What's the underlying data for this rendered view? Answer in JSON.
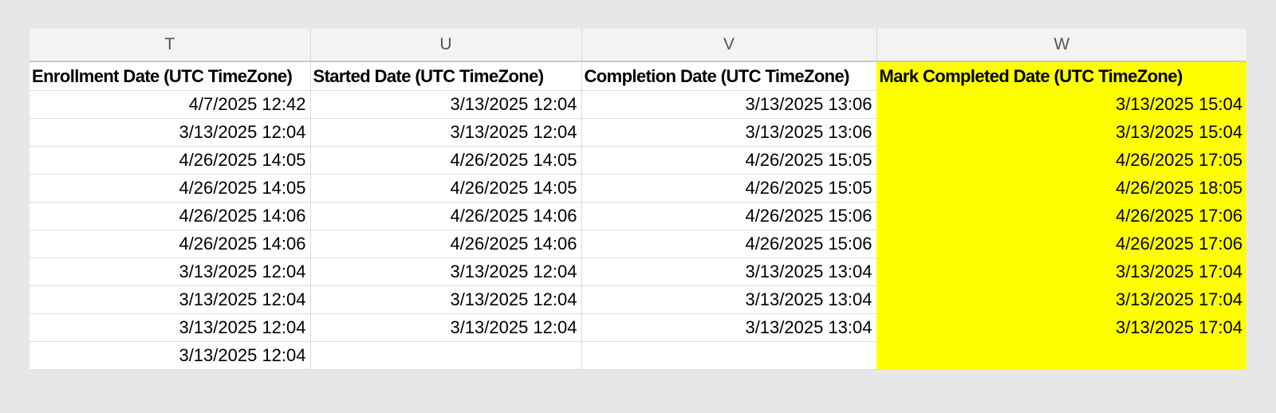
{
  "columns": [
    "T",
    "U",
    "V",
    "W"
  ],
  "headers": [
    "Enrollment Date (UTC TimeZone)",
    "Started Date (UTC TimeZone)",
    "Completion Date (UTC TimeZone)",
    "Mark Completed Date (UTC TimeZone)"
  ],
  "highlight_color": "#ffff00",
  "rows": [
    [
      "4/7/2025 12:42",
      "3/13/2025 12:04",
      "3/13/2025 13:06",
      "3/13/2025 15:04"
    ],
    [
      "3/13/2025 12:04",
      "3/13/2025 12:04",
      "3/13/2025 13:06",
      "3/13/2025 15:04"
    ],
    [
      "4/26/2025 14:05",
      "4/26/2025 14:05",
      "4/26/2025 15:05",
      "4/26/2025 17:05"
    ],
    [
      "4/26/2025 14:05",
      "4/26/2025 14:05",
      "4/26/2025 15:05",
      "4/26/2025 18:05"
    ],
    [
      "4/26/2025 14:06",
      "4/26/2025 14:06",
      "4/26/2025 15:06",
      "4/26/2025 17:06"
    ],
    [
      "4/26/2025 14:06",
      "4/26/2025 14:06",
      "4/26/2025 15:06",
      "4/26/2025 17:06"
    ],
    [
      "3/13/2025 12:04",
      "3/13/2025 12:04",
      "3/13/2025 13:04",
      "3/13/2025 17:04"
    ],
    [
      "3/13/2025 12:04",
      "3/13/2025 12:04",
      "3/13/2025 13:04",
      "3/13/2025 17:04"
    ],
    [
      "3/13/2025 12:04",
      "3/13/2025 12:04",
      "3/13/2025 13:04",
      "3/13/2025 17:04"
    ],
    [
      "3/13/2025 12:04",
      "",
      "",
      ""
    ]
  ]
}
